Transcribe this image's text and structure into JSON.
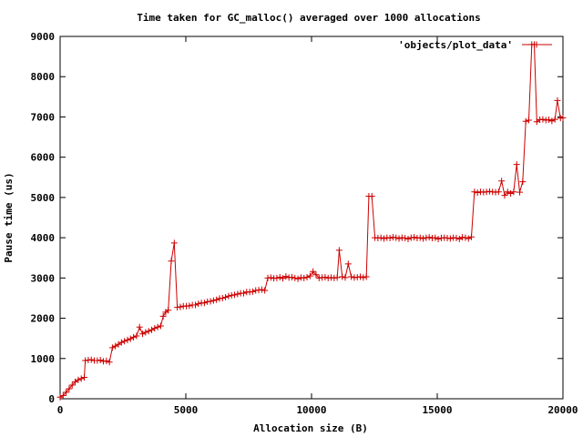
{
  "chart_data": {
    "type": "line",
    "title": "Time taken for GC_malloc() averaged over 1000 allocations",
    "xlabel": "Allocation size (B)",
    "ylabel": "Pause time (us)",
    "xlim": [
      0,
      20000
    ],
    "ylim": [
      0,
      9000
    ],
    "xticks": [
      0,
      5000,
      10000,
      15000,
      20000
    ],
    "yticks": [
      0,
      1000,
      2000,
      3000,
      4000,
      5000,
      6000,
      7000,
      8000,
      9000
    ],
    "grid": false,
    "legend_position": "top-right",
    "colors": {
      "series": "#cc0000",
      "axes": "#000000",
      "background": "#ffffff"
    },
    "series": [
      {
        "name": "'objects/plot_data'",
        "marker": "plus",
        "points": [
          [
            0,
            40
          ],
          [
            120,
            80
          ],
          [
            240,
            160
          ],
          [
            360,
            250
          ],
          [
            480,
            340
          ],
          [
            600,
            420
          ],
          [
            720,
            470
          ],
          [
            840,
            500
          ],
          [
            960,
            530
          ],
          [
            1000,
            950
          ],
          [
            1120,
            960
          ],
          [
            1240,
            970
          ],
          [
            1360,
            950
          ],
          [
            1480,
            950
          ],
          [
            1600,
            960
          ],
          [
            1720,
            930
          ],
          [
            1840,
            940
          ],
          [
            1960,
            910
          ],
          [
            2080,
            1270
          ],
          [
            2200,
            1310
          ],
          [
            2320,
            1350
          ],
          [
            2440,
            1400
          ],
          [
            2560,
            1430
          ],
          [
            2680,
            1460
          ],
          [
            2800,
            1490
          ],
          [
            2920,
            1530
          ],
          [
            3040,
            1560
          ],
          [
            3160,
            1780
          ],
          [
            3280,
            1610
          ],
          [
            3400,
            1650
          ],
          [
            3520,
            1680
          ],
          [
            3640,
            1710
          ],
          [
            3760,
            1750
          ],
          [
            3880,
            1780
          ],
          [
            4000,
            1810
          ],
          [
            4100,
            2050
          ],
          [
            4200,
            2150
          ],
          [
            4300,
            2200
          ],
          [
            4420,
            3420
          ],
          [
            4540,
            3870
          ],
          [
            4660,
            2270
          ],
          [
            4780,
            2280
          ],
          [
            4900,
            2300
          ],
          [
            5020,
            2300
          ],
          [
            5140,
            2310
          ],
          [
            5260,
            2330
          ],
          [
            5380,
            2330
          ],
          [
            5500,
            2360
          ],
          [
            5620,
            2380
          ],
          [
            5740,
            2380
          ],
          [
            5860,
            2410
          ],
          [
            5980,
            2420
          ],
          [
            6100,
            2440
          ],
          [
            6220,
            2460
          ],
          [
            6340,
            2490
          ],
          [
            6460,
            2500
          ],
          [
            6580,
            2520
          ],
          [
            6700,
            2550
          ],
          [
            6820,
            2570
          ],
          [
            6940,
            2580
          ],
          [
            7060,
            2600
          ],
          [
            7180,
            2620
          ],
          [
            7300,
            2620
          ],
          [
            7420,
            2650
          ],
          [
            7540,
            2650
          ],
          [
            7660,
            2660
          ],
          [
            7780,
            2690
          ],
          [
            7900,
            2700
          ],
          [
            8020,
            2710
          ],
          [
            8140,
            2690
          ],
          [
            8260,
            3000
          ],
          [
            8380,
            3010
          ],
          [
            8500,
            2990
          ],
          [
            8620,
            3000
          ],
          [
            8740,
            3020
          ],
          [
            8860,
            2990
          ],
          [
            8980,
            3040
          ],
          [
            9100,
            3010
          ],
          [
            9220,
            3020
          ],
          [
            9340,
            3000
          ],
          [
            9460,
            2980
          ],
          [
            9580,
            3010
          ],
          [
            9700,
            3000
          ],
          [
            9820,
            3020
          ],
          [
            9940,
            3050
          ],
          [
            10060,
            3160
          ],
          [
            10180,
            3080
          ],
          [
            10300,
            3000
          ],
          [
            10420,
            3010
          ],
          [
            10540,
            3020
          ],
          [
            10660,
            3000
          ],
          [
            10780,
            3010
          ],
          [
            10900,
            3000
          ],
          [
            11020,
            3010
          ],
          [
            11100,
            3690
          ],
          [
            11220,
            3030
          ],
          [
            11340,
            3010
          ],
          [
            11460,
            3350
          ],
          [
            11580,
            3030
          ],
          [
            11700,
            3010
          ],
          [
            11820,
            3020
          ],
          [
            11940,
            3030
          ],
          [
            12060,
            3010
          ],
          [
            12180,
            3030
          ],
          [
            12280,
            5030
          ],
          [
            12400,
            5030
          ],
          [
            12520,
            4000
          ],
          [
            12640,
            3990
          ],
          [
            12760,
            4000
          ],
          [
            12880,
            3980
          ],
          [
            13000,
            4000
          ],
          [
            13120,
            3990
          ],
          [
            13240,
            4010
          ],
          [
            13360,
            4000
          ],
          [
            13480,
            3980
          ],
          [
            13600,
            4000
          ],
          [
            13720,
            3990
          ],
          [
            13840,
            3970
          ],
          [
            13960,
            4000
          ],
          [
            14080,
            4010
          ],
          [
            14200,
            3990
          ],
          [
            14320,
            4000
          ],
          [
            14440,
            3980
          ],
          [
            14560,
            4000
          ],
          [
            14680,
            4010
          ],
          [
            14800,
            3990
          ],
          [
            14920,
            4000
          ],
          [
            15040,
            3970
          ],
          [
            15160,
            3990
          ],
          [
            15280,
            4000
          ],
          [
            15400,
            3990
          ],
          [
            15520,
            3980
          ],
          [
            15640,
            4000
          ],
          [
            15760,
            3990
          ],
          [
            15880,
            3970
          ],
          [
            16000,
            4010
          ],
          [
            16120,
            4000
          ],
          [
            16240,
            3980
          ],
          [
            16360,
            4020
          ],
          [
            16480,
            5140
          ],
          [
            16600,
            5120
          ],
          [
            16720,
            5140
          ],
          [
            16840,
            5130
          ],
          [
            16960,
            5140
          ],
          [
            17080,
            5150
          ],
          [
            17200,
            5140
          ],
          [
            17320,
            5130
          ],
          [
            17440,
            5140
          ],
          [
            17560,
            5410
          ],
          [
            17680,
            5050
          ],
          [
            17800,
            5140
          ],
          [
            17920,
            5100
          ],
          [
            18040,
            5140
          ],
          [
            18160,
            5820
          ],
          [
            18280,
            5130
          ],
          [
            18400,
            5390
          ],
          [
            18520,
            6890
          ],
          [
            18640,
            6920
          ],
          [
            18760,
            8800
          ],
          [
            18860,
            8800
          ],
          [
            18960,
            6880
          ],
          [
            19080,
            6930
          ],
          [
            19200,
            6940
          ],
          [
            19320,
            6920
          ],
          [
            19440,
            6930
          ],
          [
            19560,
            6900
          ],
          [
            19680,
            6940
          ],
          [
            19780,
            7410
          ],
          [
            19900,
            6970
          ],
          [
            20000,
            6980
          ]
        ]
      }
    ]
  }
}
